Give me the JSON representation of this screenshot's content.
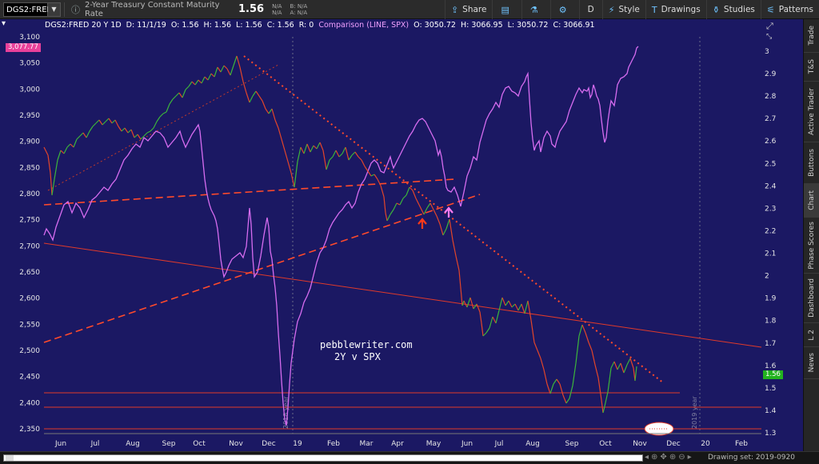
{
  "toolbar": {
    "symbol": "DGS2:FRED",
    "description": "2-Year Treasury Constant Maturity Rate",
    "last": "1.56",
    "bid_line": "N/A",
    "ask_line": "N/A",
    "bid_label": "B: N/A",
    "ask_label": "A: N/A",
    "share_label": "Share",
    "aggregation": "D",
    "style_label": "Style",
    "drawings_label": "Drawings",
    "studies_label": "Studies",
    "patterns_label": "Patterns"
  },
  "info": {
    "header": "DGS2:FRED 20 Y 1D",
    "date": "D: 11/1/19",
    "open": "O: 1.56",
    "high": "H: 1.56",
    "low": "L: 1.56",
    "close": "C: 1.56",
    "r": "R: 0",
    "comparison": "Comparison (LINE, SPX)",
    "cmp_open": "O: 3050.72",
    "cmp_high": "H: 3066.95",
    "cmp_low": "L: 3050.72",
    "cmp_close": "C: 3066.91"
  },
  "watermark": {
    "line1": "pebblewriter.com",
    "line2": "2Y v SPX"
  },
  "left_axis": [
    "3,100",
    "3,050",
    "3,000",
    "2,950",
    "2,900",
    "2,850",
    "2,800",
    "2,750",
    "2,700",
    "2,650",
    "2,600",
    "2,550",
    "2,500",
    "2,450",
    "2,400",
    "2,350"
  ],
  "left_price_tag": "3,077.77",
  "right_axis": [
    "3",
    "2.9",
    "2.8",
    "2.7",
    "2.6",
    "2.5",
    "2.4",
    "2.3",
    "2.2",
    "2.1",
    "2",
    "1.9",
    "1.8",
    "1.7",
    "1.6",
    "1.5",
    "1.4",
    "1.3"
  ],
  "right_price_tag": "1.56",
  "x_axis": [
    "Jun",
    "Jul",
    "Aug",
    "Sep",
    "Oct",
    "Nov",
    "Dec",
    "19",
    "Feb",
    "Mar",
    "Apr",
    "May",
    "Jun",
    "Jul",
    "Aug",
    "Sep",
    "Oct",
    "Nov",
    "Dec",
    "20",
    "Feb"
  ],
  "year_markers": [
    "2018 year",
    "2019 year"
  ],
  "sidebar_tabs": [
    "Trade",
    "T&S",
    "Active Trader",
    "Buttons",
    "Chart",
    "Phase Scores",
    "Dashboard",
    "L 2",
    "News"
  ],
  "status": {
    "drawing_set": "Drawing set: 2019-0920"
  },
  "colors": {
    "background": "#1b1863",
    "spx_line": "#d66cf0",
    "rate_up": "#3cb43c",
    "rate_down": "#e2452a",
    "trendline": "#ff4a2b"
  }
}
